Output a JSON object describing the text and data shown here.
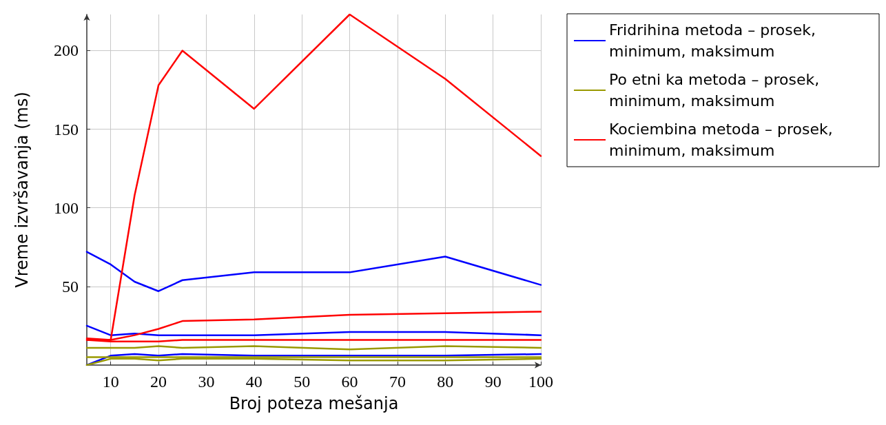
{
  "chart_data": {
    "type": "line",
    "xlabel": "Broj poteza mešanja",
    "ylabel": "Vreme izvršavanja (ms)",
    "x": [
      5,
      10,
      15,
      20,
      25,
      40,
      60,
      80,
      100
    ],
    "xlim": [
      5,
      100
    ],
    "xticks": [
      10,
      20,
      30,
      40,
      50,
      60,
      70,
      80,
      90,
      100
    ],
    "ylim": [
      0,
      223
    ],
    "yticks": [
      50,
      100,
      150,
      200
    ],
    "grid": true,
    "legend": "top right",
    "marker": "none",
    "line_style": "solid",
    "series": [
      {
        "name": "Fridrihina metoda – prosek, minimum, maksimum",
        "color": "#0000ff",
        "values": [
          25,
          19,
          20,
          19,
          19,
          19,
          21,
          21,
          19
        ]
      },
      {
        "color": "#0000ff",
        "values": [
          0,
          6,
          7,
          6,
          7,
          6,
          6,
          6,
          7
        ]
      },
      {
        "color": "#0000ff",
        "values": [
          72,
          64,
          53,
          47,
          54,
          59,
          59,
          69,
          51
        ]
      },
      {
        "name": "Po etni ka metoda – prosek, minimum, maksimum",
        "color": "#999900",
        "values": [
          5,
          5,
          5,
          5,
          5,
          5,
          5,
          5,
          5
        ]
      },
      {
        "color": "#999900",
        "values": [
          0,
          4,
          4,
          3,
          4,
          4,
          3,
          3,
          4
        ]
      },
      {
        "color": "#999900",
        "values": [
          11,
          11,
          11,
          12,
          11,
          12,
          10,
          12,
          11
        ]
      },
      {
        "name": "Kociembina metoda – prosek, minimum, maksimum",
        "color": "#ff0000",
        "values": [
          17,
          16,
          19,
          23,
          28,
          29,
          32,
          33,
          34
        ]
      },
      {
        "color": "#ff0000",
        "values": [
          16,
          15,
          15,
          15,
          16,
          16,
          16,
          16,
          16
        ]
      },
      {
        "color": "#ff0000",
        "values": [
          16,
          16,
          108,
          178,
          200,
          163,
          223,
          182,
          133
        ]
      }
    ]
  }
}
